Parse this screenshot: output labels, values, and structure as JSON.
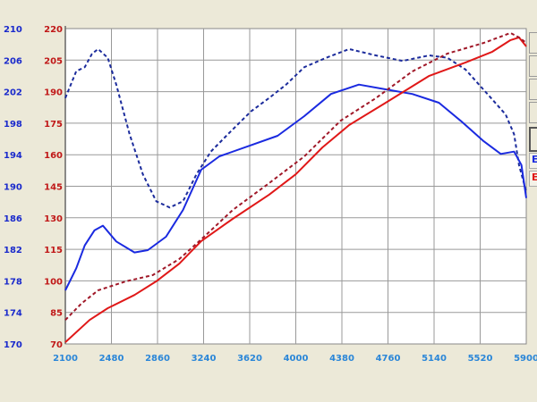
{
  "chart_data": {
    "type": "line",
    "xlim": [
      2100,
      5900
    ],
    "x_ticks": [
      "2100",
      "2480",
      "2860",
      "3240",
      "3620",
      "4000",
      "4380",
      "4760",
      "5140",
      "5520",
      "5900"
    ],
    "left_axis": {
      "ylim": [
        170,
        210
      ],
      "ticks": [
        "210",
        "206",
        "202",
        "198",
        "194",
        "190",
        "186",
        "182",
        "178",
        "174",
        "170"
      ],
      "color": "#1a2acc"
    },
    "right_axis": {
      "ylim": [
        70,
        220
      ],
      "ticks": [
        "220",
        "205",
        "190",
        "175",
        "160",
        "145",
        "130",
        "115",
        "100",
        "85",
        "70"
      ],
      "color": "#c01818"
    },
    "grid": true,
    "series": [
      {
        "axis": "left",
        "color": "#1c2c9c",
        "style": "dashed",
        "points": [
          [
            2100,
            201.2
          ],
          [
            2190,
            204.6
          ],
          [
            2260,
            205.1
          ],
          [
            2320,
            206.8
          ],
          [
            2370,
            207.4
          ],
          [
            2450,
            206.3
          ],
          [
            2520,
            202.9
          ],
          [
            2630,
            196.6
          ],
          [
            2740,
            191.5
          ],
          [
            2850,
            188.1
          ],
          [
            2960,
            187.3
          ],
          [
            3070,
            188.1
          ],
          [
            3180,
            191.5
          ],
          [
            3300,
            194.4
          ],
          [
            3440,
            196.6
          ],
          [
            3630,
            199.5
          ],
          [
            3780,
            201.2
          ],
          [
            3920,
            202.9
          ],
          [
            4070,
            205.1
          ],
          [
            4250,
            206.3
          ],
          [
            4440,
            207.4
          ],
          [
            4660,
            206.6
          ],
          [
            4880,
            205.9
          ],
          [
            5100,
            206.6
          ],
          [
            5250,
            206.3
          ],
          [
            5400,
            204.8
          ],
          [
            5580,
            201.7
          ],
          [
            5730,
            199.1
          ],
          [
            5800,
            196.6
          ],
          [
            5840,
            192.7
          ],
          [
            5900,
            189.3
          ]
        ]
      },
      {
        "axis": "left",
        "color": "#1a2ae0",
        "style": "solid",
        "points": [
          [
            2100,
            176.8
          ],
          [
            2190,
            179.6
          ],
          [
            2260,
            182.5
          ],
          [
            2340,
            184.4
          ],
          [
            2410,
            185.0
          ],
          [
            2520,
            183.0
          ],
          [
            2670,
            181.6
          ],
          [
            2780,
            181.9
          ],
          [
            2930,
            183.6
          ],
          [
            3070,
            187.0
          ],
          [
            3220,
            192.1
          ],
          [
            3370,
            193.8
          ],
          [
            3630,
            195.2
          ],
          [
            3850,
            196.4
          ],
          [
            4070,
            198.9
          ],
          [
            4290,
            201.7
          ],
          [
            4520,
            202.9
          ],
          [
            4740,
            202.3
          ],
          [
            4960,
            201.7
          ],
          [
            5180,
            200.6
          ],
          [
            5360,
            198.3
          ],
          [
            5550,
            195.7
          ],
          [
            5690,
            194.1
          ],
          [
            5800,
            194.4
          ],
          [
            5860,
            192.7
          ],
          [
            5900,
            188.5
          ]
        ]
      },
      {
        "axis": "right",
        "color": "#e01818",
        "style": "solid",
        "points": [
          [
            2100,
            70.8
          ],
          [
            2300,
            81.4
          ],
          [
            2450,
            87.0
          ],
          [
            2670,
            93.3
          ],
          [
            2850,
            99.8
          ],
          [
            3040,
            108.2
          ],
          [
            3220,
            118.9
          ],
          [
            3480,
            129.5
          ],
          [
            3780,
            141.0
          ],
          [
            4000,
            150.7
          ],
          [
            4220,
            163.5
          ],
          [
            4440,
            174.1
          ],
          [
            4740,
            184.7
          ],
          [
            5100,
            197.5
          ],
          [
            5400,
            203.9
          ],
          [
            5620,
            209.0
          ],
          [
            5770,
            214.5
          ],
          [
            5840,
            215.8
          ],
          [
            5900,
            211.5
          ]
        ]
      },
      {
        "axis": "right",
        "color": "#a01828",
        "style": "dashed",
        "points": [
          [
            2100,
            81.4
          ],
          [
            2230,
            89.1
          ],
          [
            2370,
            95.5
          ],
          [
            2600,
            99.8
          ],
          [
            2820,
            102.7
          ],
          [
            3040,
            110.4
          ],
          [
            3220,
            119.7
          ],
          [
            3480,
            133.7
          ],
          [
            3780,
            146.5
          ],
          [
            4070,
            159.2
          ],
          [
            4370,
            176.2
          ],
          [
            4660,
            186.9
          ],
          [
            4960,
            199.6
          ],
          [
            5250,
            208.1
          ],
          [
            5550,
            213.2
          ],
          [
            5770,
            217.9
          ],
          [
            5840,
            215.8
          ],
          [
            5900,
            213.2
          ]
        ]
      }
    ]
  },
  "legend": {
    "blue_label": "E",
    "red_label": "E"
  }
}
